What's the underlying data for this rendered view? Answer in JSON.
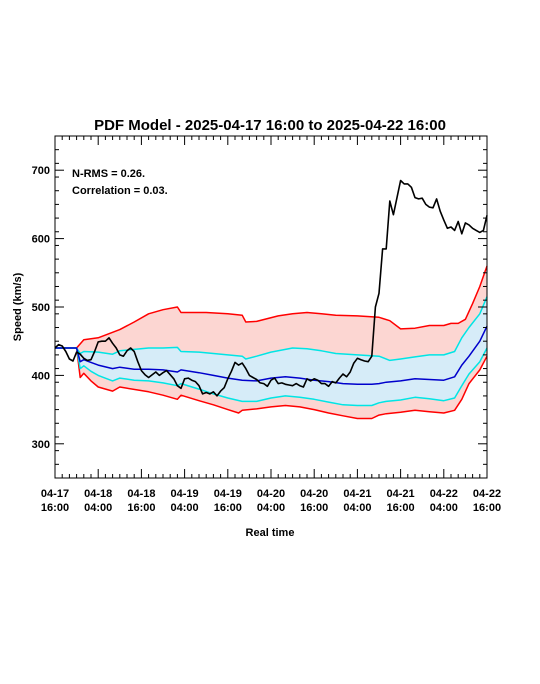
{
  "chart_data": {
    "type": "line",
    "title": "PDF Model - 2025-04-17 16:00 to 2025-04-22 16:00",
    "xlabel": "Real time",
    "ylabel": "Speed (km/s)",
    "annotations": [
      "N-RMS = 0.26.",
      "Correlation = 0.03."
    ],
    "xlim": [
      0,
      120
    ],
    "ylim": [
      250,
      750
    ],
    "y_ticks": [
      300,
      400,
      500,
      600,
      700
    ],
    "x_ticks": [
      {
        "x": 0,
        "line1": "04-17",
        "line2": "16:00"
      },
      {
        "x": 12,
        "line1": "04-18",
        "line2": "04:00"
      },
      {
        "x": 24,
        "line1": "04-18",
        "line2": "16:00"
      },
      {
        "x": 36,
        "line1": "04-19",
        "line2": "04:00"
      },
      {
        "x": 48,
        "line1": "04-19",
        "line2": "16:00"
      },
      {
        "x": 60,
        "line1": "04-20",
        "line2": "04:00"
      },
      {
        "x": 72,
        "line1": "04-20",
        "line2": "16:00"
      },
      {
        "x": 84,
        "line1": "04-21",
        "line2": "04:00"
      },
      {
        "x": 96,
        "line1": "04-21",
        "line2": "16:00"
      },
      {
        "x": 108,
        "line1": "04-22",
        "line2": "04:00"
      },
      {
        "x": 120,
        "line1": "04-22",
        "line2": "16:00"
      }
    ],
    "grid": false,
    "series": [
      {
        "color": "#ff0000",
        "role": "upper-outer",
        "points": [
          [
            0,
            440
          ],
          [
            6,
            440
          ],
          [
            8,
            452
          ],
          [
            12,
            455
          ],
          [
            18,
            467
          ],
          [
            22,
            478
          ],
          [
            26,
            490
          ],
          [
            30,
            496
          ],
          [
            34,
            500
          ],
          [
            35,
            492
          ],
          [
            42,
            492
          ],
          [
            48,
            490
          ],
          [
            52,
            488
          ],
          [
            53,
            478
          ],
          [
            56,
            479
          ],
          [
            62,
            487
          ],
          [
            66,
            490
          ],
          [
            70,
            492
          ],
          [
            74,
            490
          ],
          [
            78,
            488
          ],
          [
            84,
            487
          ],
          [
            90,
            485
          ],
          [
            93,
            480
          ],
          [
            96,
            468
          ],
          [
            100,
            469
          ],
          [
            104,
            473
          ],
          [
            108,
            473
          ],
          [
            110,
            476
          ],
          [
            112,
            476
          ],
          [
            114,
            482
          ],
          [
            116,
            505
          ],
          [
            118,
            530
          ],
          [
            120,
            560
          ]
        ]
      },
      {
        "color": "#ff0000",
        "role": "lower-outer",
        "points": [
          [
            0,
            440
          ],
          [
            6,
            440
          ],
          [
            7,
            397
          ],
          [
            8,
            403
          ],
          [
            10,
            392
          ],
          [
            12,
            383
          ],
          [
            16,
            377
          ],
          [
            18,
            383
          ],
          [
            26,
            376
          ],
          [
            30,
            371
          ],
          [
            34,
            365
          ],
          [
            35,
            371
          ],
          [
            40,
            363
          ],
          [
            44,
            357
          ],
          [
            48,
            350
          ],
          [
            51,
            345
          ],
          [
            52,
            349
          ],
          [
            56,
            351
          ],
          [
            60,
            354
          ],
          [
            64,
            356
          ],
          [
            68,
            354
          ],
          [
            72,
            350
          ],
          [
            76,
            345
          ],
          [
            80,
            341
          ],
          [
            84,
            337
          ],
          [
            88,
            337
          ],
          [
            90,
            342
          ],
          [
            92,
            344
          ],
          [
            96,
            346
          ],
          [
            100,
            349
          ],
          [
            104,
            347
          ],
          [
            108,
            345
          ],
          [
            111,
            349
          ],
          [
            113,
            365
          ],
          [
            115,
            388
          ],
          [
            118,
            408
          ],
          [
            120,
            428
          ]
        ]
      },
      {
        "color": "#00e5e5",
        "role": "upper-inner",
        "points": [
          [
            0,
            440
          ],
          [
            6,
            440
          ],
          [
            7,
            432
          ],
          [
            8,
            435
          ],
          [
            12,
            434
          ],
          [
            16,
            431
          ],
          [
            18,
            436
          ],
          [
            22,
            438
          ],
          [
            26,
            440
          ],
          [
            30,
            440
          ],
          [
            34,
            441
          ],
          [
            35,
            435
          ],
          [
            40,
            434
          ],
          [
            44,
            432
          ],
          [
            48,
            430
          ],
          [
            52,
            428
          ],
          [
            53,
            424
          ],
          [
            56,
            428
          ],
          [
            60,
            434
          ],
          [
            64,
            438
          ],
          [
            66,
            440
          ],
          [
            70,
            439
          ],
          [
            74,
            436
          ],
          [
            78,
            432
          ],
          [
            84,
            430
          ],
          [
            90,
            428
          ],
          [
            93,
            422
          ],
          [
            96,
            424
          ],
          [
            100,
            427
          ],
          [
            104,
            430
          ],
          [
            108,
            430
          ],
          [
            111,
            435
          ],
          [
            113,
            455
          ],
          [
            115,
            470
          ],
          [
            118,
            490
          ],
          [
            120,
            515
          ]
        ]
      },
      {
        "color": "#00e5e5",
        "role": "lower-inner",
        "points": [
          [
            0,
            440
          ],
          [
            6,
            440
          ],
          [
            7,
            410
          ],
          [
            8,
            414
          ],
          [
            10,
            406
          ],
          [
            12,
            400
          ],
          [
            16,
            392
          ],
          [
            18,
            396
          ],
          [
            22,
            393
          ],
          [
            26,
            392
          ],
          [
            30,
            389
          ],
          [
            34,
            385
          ],
          [
            35,
            388
          ],
          [
            40,
            380
          ],
          [
            44,
            373
          ],
          [
            48,
            367
          ],
          [
            52,
            362
          ],
          [
            56,
            362
          ],
          [
            60,
            367
          ],
          [
            64,
            370
          ],
          [
            68,
            368
          ],
          [
            72,
            365
          ],
          [
            76,
            361
          ],
          [
            80,
            357
          ],
          [
            84,
            356
          ],
          [
            88,
            356
          ],
          [
            90,
            360
          ],
          [
            92,
            362
          ],
          [
            96,
            364
          ],
          [
            100,
            368
          ],
          [
            104,
            366
          ],
          [
            108,
            363
          ],
          [
            111,
            367
          ],
          [
            113,
            385
          ],
          [
            115,
            402
          ],
          [
            118,
            420
          ],
          [
            120,
            440
          ]
        ]
      },
      {
        "color": "#0000cc",
        "role": "median",
        "points": [
          [
            0,
            440
          ],
          [
            6,
            440
          ],
          [
            7,
            420
          ],
          [
            8,
            423
          ],
          [
            10,
            419
          ],
          [
            12,
            415
          ],
          [
            16,
            410
          ],
          [
            18,
            412
          ],
          [
            22,
            409
          ],
          [
            26,
            409
          ],
          [
            30,
            408
          ],
          [
            34,
            405
          ],
          [
            35,
            408
          ],
          [
            40,
            404
          ],
          [
            44,
            400
          ],
          [
            48,
            396
          ],
          [
            52,
            393
          ],
          [
            56,
            392
          ],
          [
            60,
            396
          ],
          [
            64,
            398
          ],
          [
            68,
            396
          ],
          [
            72,
            393
          ],
          [
            76,
            391
          ],
          [
            80,
            388
          ],
          [
            84,
            387
          ],
          [
            88,
            387
          ],
          [
            90,
            388
          ],
          [
            92,
            390
          ],
          [
            96,
            392
          ],
          [
            100,
            395
          ],
          [
            104,
            394
          ],
          [
            108,
            393
          ],
          [
            111,
            398
          ],
          [
            113,
            415
          ],
          [
            115,
            428
          ],
          [
            118,
            450
          ],
          [
            120,
            472
          ]
        ]
      },
      {
        "color": "#000000",
        "role": "observed",
        "points": [
          [
            0,
            440
          ],
          [
            1,
            445
          ],
          [
            2,
            443
          ],
          [
            3,
            435
          ],
          [
            4,
            424
          ],
          [
            5,
            421
          ],
          [
            6,
            434
          ],
          [
            7,
            431
          ],
          [
            8,
            425
          ],
          [
            9,
            422
          ],
          [
            10,
            423
          ],
          [
            11,
            435
          ],
          [
            12,
            449
          ],
          [
            13,
            450
          ],
          [
            14,
            450
          ],
          [
            15,
            455
          ],
          [
            16,
            447
          ],
          [
            17,
            440
          ],
          [
            18,
            430
          ],
          [
            19,
            428
          ],
          [
            20,
            436
          ],
          [
            21,
            440
          ],
          [
            22,
            435
          ],
          [
            23,
            420
          ],
          [
            24,
            407
          ],
          [
            25,
            401
          ],
          [
            26,
            397
          ],
          [
            27,
            401
          ],
          [
            28,
            405
          ],
          [
            29,
            400
          ],
          [
            30,
            404
          ],
          [
            31,
            407
          ],
          [
            32,
            401
          ],
          [
            33,
            395
          ],
          [
            34,
            385
          ],
          [
            35,
            381
          ],
          [
            36,
            395
          ],
          [
            37,
            396
          ],
          [
            38,
            393
          ],
          [
            39,
            391
          ],
          [
            40,
            385
          ],
          [
            41,
            373
          ],
          [
            42,
            375
          ],
          [
            43,
            373
          ],
          [
            44,
            376
          ],
          [
            45,
            370
          ],
          [
            46,
            377
          ],
          [
            47,
            382
          ],
          [
            48,
            395
          ],
          [
            49,
            406
          ],
          [
            50,
            419
          ],
          [
            51,
            415
          ],
          [
            52,
            418
          ],
          [
            53,
            410
          ],
          [
            54,
            400
          ],
          [
            55,
            397
          ],
          [
            56,
            394
          ],
          [
            57,
            389
          ],
          [
            58,
            388
          ],
          [
            59,
            384
          ],
          [
            60,
            393
          ],
          [
            61,
            396
          ],
          [
            62,
            388
          ],
          [
            63,
            389
          ],
          [
            64,
            387
          ],
          [
            65,
            386
          ],
          [
            66,
            385
          ],
          [
            67,
            388
          ],
          [
            68,
            385
          ],
          [
            69,
            383
          ],
          [
            70,
            395
          ],
          [
            71,
            392
          ],
          [
            72,
            395
          ],
          [
            73,
            393
          ],
          [
            74,
            388
          ],
          [
            75,
            388
          ],
          [
            76,
            384
          ],
          [
            77,
            391
          ],
          [
            78,
            389
          ],
          [
            79,
            396
          ],
          [
            80,
            402
          ],
          [
            81,
            398
          ],
          [
            82,
            405
          ],
          [
            83,
            418
          ],
          [
            84,
            425
          ],
          [
            85,
            423
          ],
          [
            86,
            421
          ],
          [
            87,
            420
          ],
          [
            88,
            428
          ],
          [
            89,
            500
          ],
          [
            90,
            520
          ],
          [
            91,
            585
          ],
          [
            92,
            585
          ],
          [
            93,
            655
          ],
          [
            94,
            635
          ],
          [
            95,
            660
          ],
          [
            96,
            685
          ],
          [
            97,
            680
          ],
          [
            98,
            680
          ],
          [
            99,
            675
          ],
          [
            100,
            660
          ],
          [
            101,
            658
          ],
          [
            102,
            659
          ],
          [
            103,
            650
          ],
          [
            104,
            646
          ],
          [
            105,
            645
          ],
          [
            106,
            658
          ],
          [
            107,
            640
          ],
          [
            108,
            627
          ],
          [
            109,
            615
          ],
          [
            110,
            617
          ],
          [
            111,
            612
          ],
          [
            112,
            625
          ],
          [
            113,
            607
          ],
          [
            114,
            623
          ],
          [
            115,
            620
          ],
          [
            116,
            615
          ],
          [
            117,
            612
          ],
          [
            118,
            609
          ],
          [
            119,
            612
          ],
          [
            120,
            634
          ]
        ]
      }
    ]
  }
}
